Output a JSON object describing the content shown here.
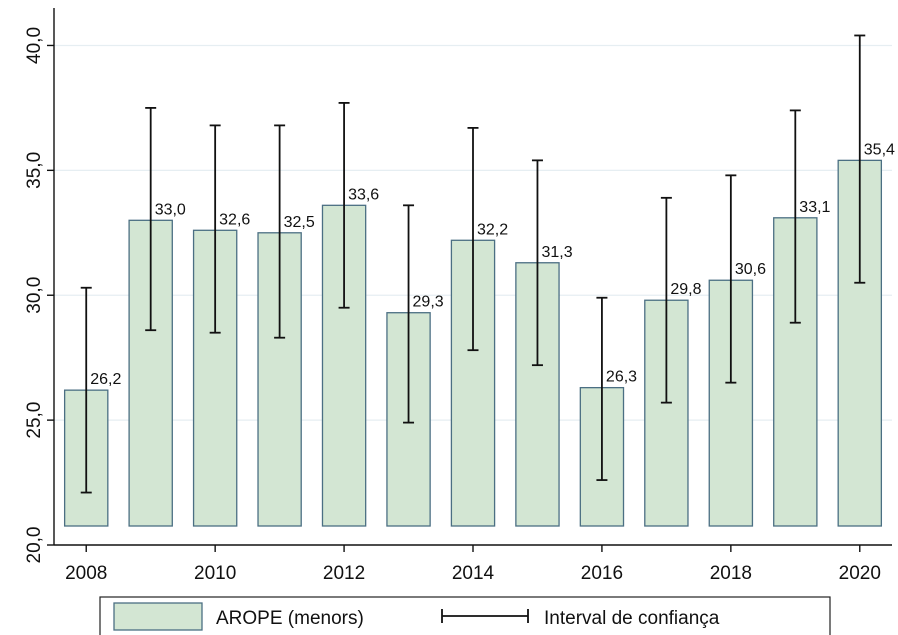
{
  "chart_data": {
    "type": "bar",
    "categories": [
      "2008",
      "2009",
      "2010",
      "2011",
      "2012",
      "2013",
      "2014",
      "2015",
      "2016",
      "2017",
      "2018",
      "2019",
      "2020"
    ],
    "series": [
      {
        "name": "AROPE (menors)",
        "values": [
          26.2,
          33.0,
          32.6,
          32.5,
          33.6,
          29.3,
          32.2,
          31.3,
          26.3,
          29.8,
          30.6,
          33.1,
          35.4
        ],
        "value_labels": [
          "26,2",
          "33,0",
          "32,6",
          "32,5",
          "33,6",
          "29,3",
          "32,2",
          "31,3",
          "26,3",
          "29,8",
          "30,6",
          "33,1",
          "35,4"
        ],
        "ci_low": [
          22.1,
          28.6,
          28.5,
          28.3,
          29.5,
          24.9,
          27.8,
          27.2,
          22.6,
          25.7,
          26.5,
          28.9,
          30.5
        ],
        "ci_high": [
          30.3,
          37.5,
          36.8,
          36.8,
          37.7,
          33.6,
          36.7,
          35.4,
          29.9,
          33.9,
          34.8,
          37.4,
          40.4
        ],
        "color": "#d3e6d3",
        "stroke": "#4b6f83"
      }
    ],
    "error_bar_name": "Interval de confiança",
    "x_ticks": [
      "2008",
      "2010",
      "2012",
      "2014",
      "2016",
      "2018",
      "2020"
    ],
    "y_ticks": [
      20.0,
      25.0,
      30.0,
      35.0,
      40.0
    ],
    "y_tick_labels": [
      "20,0",
      "25,0",
      "30,0",
      "35,0",
      "40,0"
    ],
    "ylim": [
      20,
      41.5
    ],
    "grid": true,
    "legend_position": "bottom",
    "title": "",
    "xlabel": "",
    "ylabel": ""
  },
  "colors": {
    "bar_fill": "#d3e6d3",
    "bar_stroke": "#4b6f83",
    "error_bar": "#111111",
    "grid": "#e6eef2",
    "axis": "#111111"
  }
}
